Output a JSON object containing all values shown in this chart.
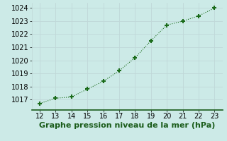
{
  "x": [
    12,
    13,
    14,
    15,
    16,
    17,
    18,
    19,
    20,
    21,
    22,
    23
  ],
  "y": [
    1016.7,
    1017.1,
    1017.2,
    1017.8,
    1018.4,
    1019.2,
    1020.2,
    1021.5,
    1022.7,
    1023.0,
    1023.4,
    1024.0
  ],
  "xlim": [
    11.5,
    23.5
  ],
  "ylim": [
    1016.2,
    1024.4
  ],
  "xticks": [
    12,
    13,
    14,
    15,
    16,
    17,
    18,
    19,
    20,
    21,
    22,
    23
  ],
  "yticks": [
    1017,
    1018,
    1019,
    1020,
    1021,
    1022,
    1023,
    1024
  ],
  "xlabel": "Graphe pression niveau de la mer (hPa)",
  "line_color": "#1a6b1a",
  "marker": "+",
  "marker_size": 5,
  "marker_lw": 1.5,
  "line_width": 0.8,
  "bg_color": "#cceae7",
  "grid_color": "#c0d8d8",
  "tick_label_fontsize": 7,
  "xlabel_fontsize": 8,
  "xlabel_color": "#1a5c1a",
  "xlabel_bold": true,
  "spine_color": "#2d6e2d",
  "spine_bottom_color": "#1a5c1a"
}
